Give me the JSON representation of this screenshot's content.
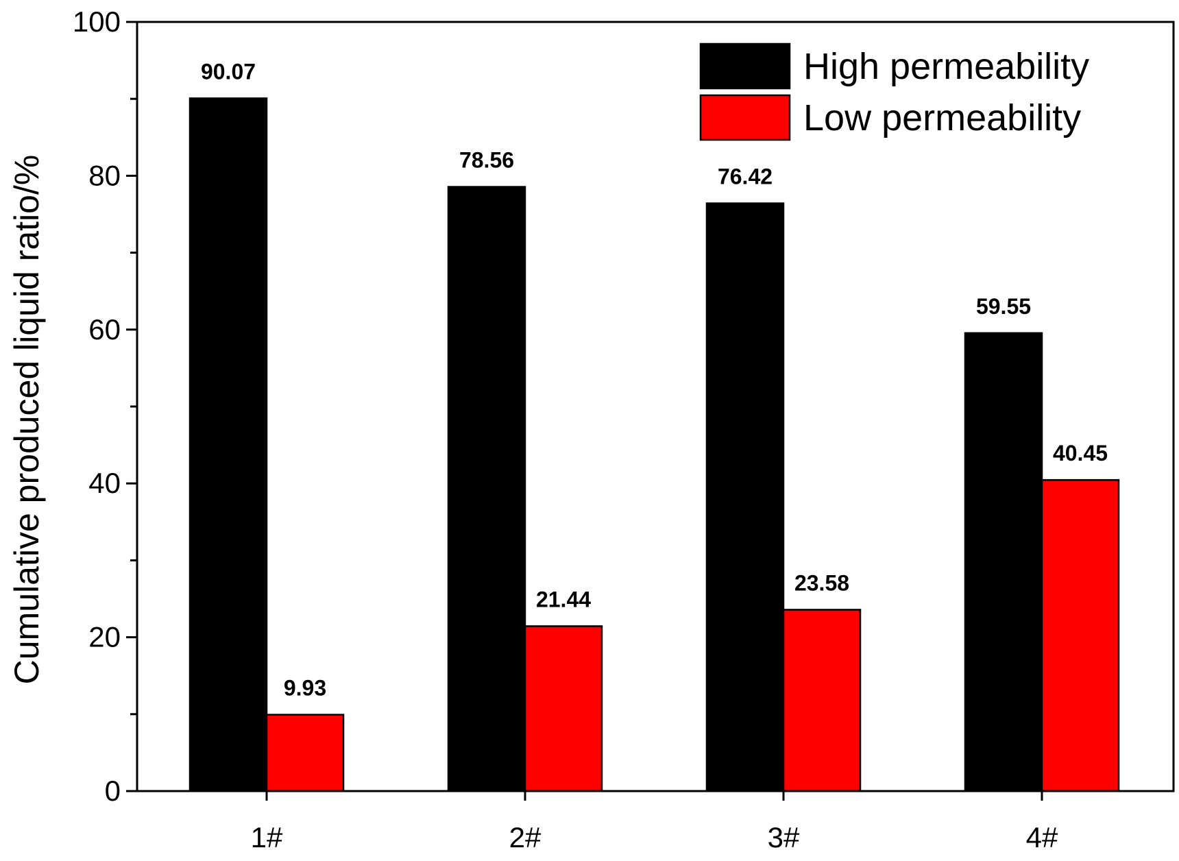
{
  "chart_data": {
    "type": "bar",
    "categories": [
      "1#",
      "2#",
      "3#",
      "4#"
    ],
    "series": [
      {
        "name": "High permeability",
        "values": [
          90.07,
          78.56,
          76.42,
          59.55
        ],
        "labels": [
          "90.07",
          "78.56",
          "76.42",
          "59.55"
        ],
        "color": "#000000"
      },
      {
        "name": "Low permeability",
        "values": [
          9.93,
          21.44,
          23.58,
          40.45
        ],
        "labels": [
          "9.93",
          "21.44",
          "23.58",
          "40.45"
        ],
        "color": "#ff0000"
      }
    ],
    "title": "",
    "xlabel": "",
    "ylabel": "Cumulative produced liquid ratio/%",
    "ylim": [
      0,
      100
    ],
    "yticks": [
      0,
      20,
      40,
      60,
      80,
      100
    ],
    "yticks_minor": [
      10,
      30,
      50,
      70,
      90
    ],
    "ytick_labels": [
      "0",
      "20",
      "40",
      "60",
      "80",
      "100"
    ],
    "grid": false,
    "legend_position": "top-right"
  }
}
